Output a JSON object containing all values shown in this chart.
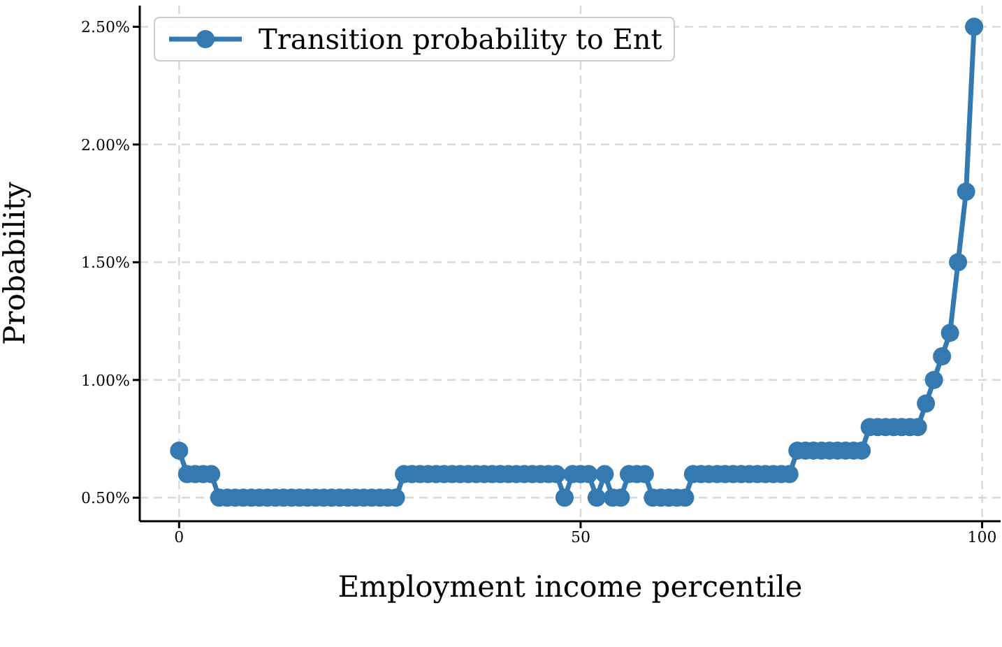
{
  "chart_data": {
    "type": "line",
    "xlabel": "Employment income percentile",
    "ylabel": "Probability",
    "x": [
      0,
      1,
      2,
      3,
      4,
      5,
      6,
      7,
      8,
      9,
      10,
      11,
      12,
      13,
      14,
      15,
      16,
      17,
      18,
      19,
      20,
      21,
      22,
      23,
      24,
      25,
      26,
      27,
      28,
      29,
      30,
      31,
      32,
      33,
      34,
      35,
      36,
      37,
      38,
      39,
      40,
      41,
      42,
      43,
      44,
      45,
      46,
      47,
      48,
      49,
      50,
      51,
      52,
      53,
      54,
      55,
      56,
      57,
      58,
      59,
      60,
      61,
      62,
      63,
      64,
      65,
      66,
      67,
      68,
      69,
      70,
      71,
      72,
      73,
      74,
      75,
      76,
      77,
      78,
      79,
      80,
      81,
      82,
      83,
      84,
      85,
      86,
      87,
      88,
      89,
      90,
      91,
      92,
      93,
      94,
      95,
      96,
      97,
      98,
      99
    ],
    "series": [
      {
        "name": "Transition probability to Ent",
        "color": "#3579b1",
        "values": [
          0.7,
          0.6,
          0.6,
          0.6,
          0.6,
          0.5,
          0.5,
          0.5,
          0.5,
          0.5,
          0.5,
          0.5,
          0.5,
          0.5,
          0.5,
          0.5,
          0.5,
          0.5,
          0.5,
          0.5,
          0.5,
          0.5,
          0.5,
          0.5,
          0.5,
          0.5,
          0.5,
          0.5,
          0.6,
          0.6,
          0.6,
          0.6,
          0.6,
          0.6,
          0.6,
          0.6,
          0.6,
          0.6,
          0.6,
          0.6,
          0.6,
          0.6,
          0.6,
          0.6,
          0.6,
          0.6,
          0.6,
          0.6,
          0.5,
          0.6,
          0.6,
          0.6,
          0.5,
          0.6,
          0.5,
          0.5,
          0.6,
          0.6,
          0.6,
          0.5,
          0.5,
          0.5,
          0.5,
          0.5,
          0.6,
          0.6,
          0.6,
          0.6,
          0.6,
          0.6,
          0.6,
          0.6,
          0.6,
          0.6,
          0.6,
          0.6,
          0.6,
          0.7,
          0.7,
          0.7,
          0.7,
          0.7,
          0.7,
          0.7,
          0.7,
          0.7,
          0.8,
          0.8,
          0.8,
          0.8,
          0.8,
          0.8,
          0.8,
          0.9,
          1.0,
          1.1,
          1.2,
          1.5,
          1.8,
          2.5
        ]
      }
    ],
    "xlim": [
      -4.9,
      102.3
    ],
    "xticks": [
      0,
      50,
      100
    ],
    "ylim": [
      0.4,
      2.59
    ],
    "yticks": [
      {
        "value": 0.5,
        "label": "0.50%"
      },
      {
        "value": 1,
        "label": "1.00%"
      },
      {
        "value": 1.5,
        "label": "1.50%"
      },
      {
        "value": 2,
        "label": "2.00%"
      },
      {
        "value": 2.5,
        "label": "2.50%"
      }
    ],
    "grid": true,
    "legend": "top left",
    "marker": "circle",
    "line_style": "solid"
  }
}
